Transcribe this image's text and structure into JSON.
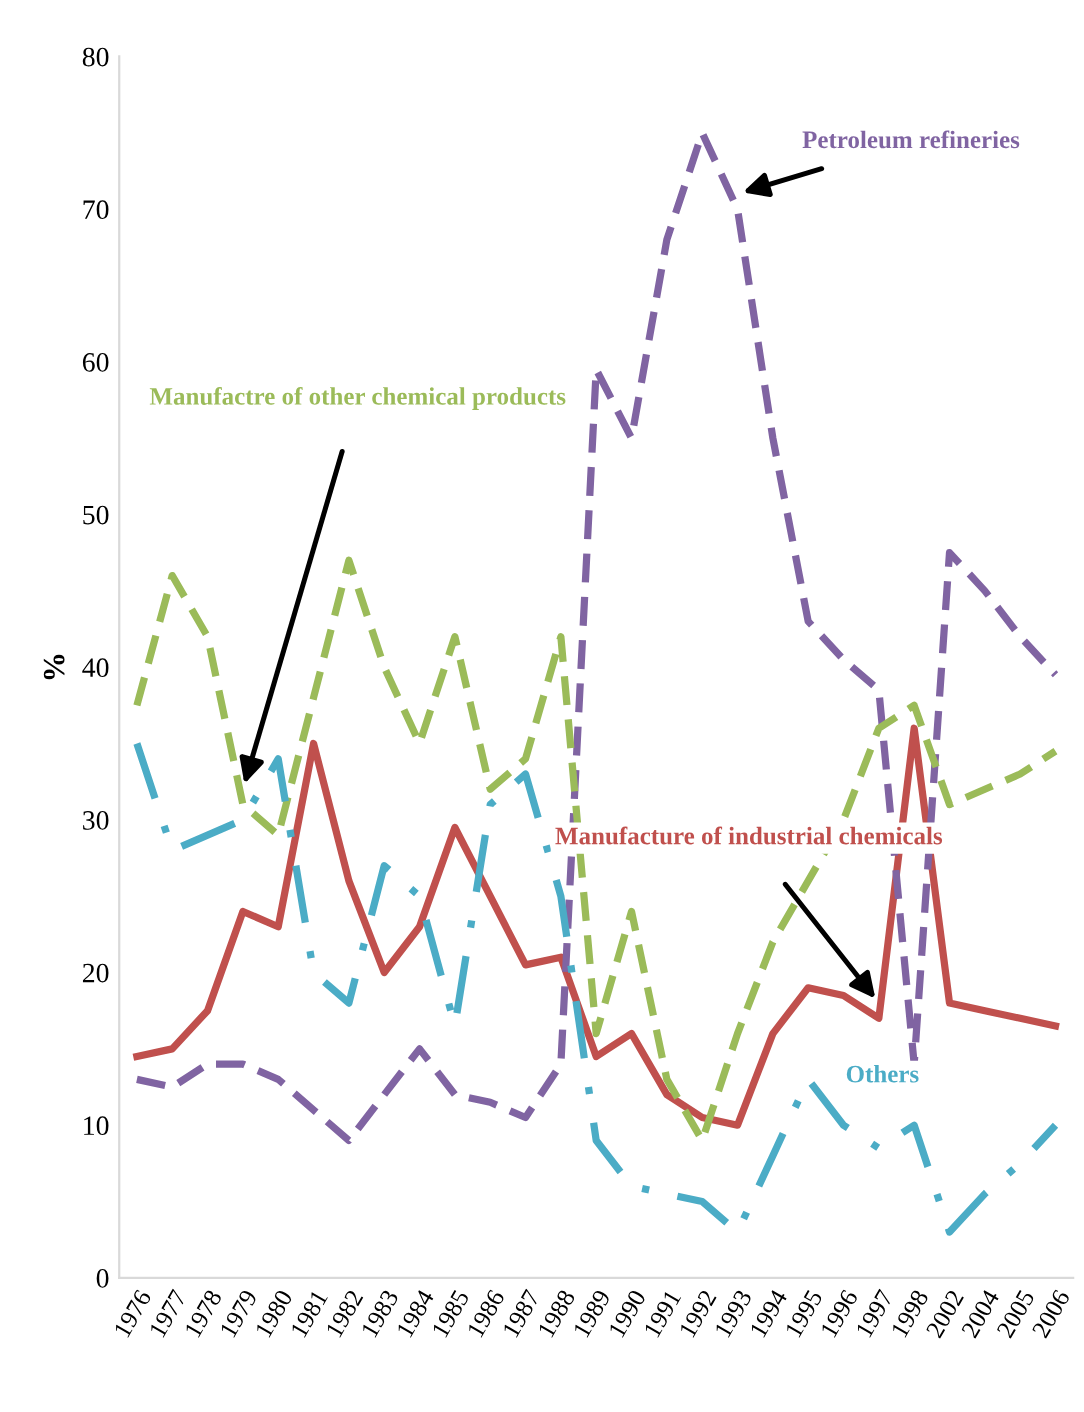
{
  "chart_data": {
    "type": "line",
    "ylabel": "%",
    "categories": [
      "1976",
      "1977",
      "1978",
      "1979",
      "1980",
      "1981",
      "1982",
      "1983",
      "1984",
      "1985",
      "1986",
      "1987",
      "1988",
      "1989",
      "1990",
      "1991",
      "1992",
      "1993",
      "1994",
      "1995",
      "1996",
      "1997",
      "1998",
      "2002",
      "2004",
      "2005",
      "2006"
    ],
    "ylim": [
      0,
      80
    ],
    "yticks": [
      0,
      10,
      20,
      30,
      40,
      50,
      60,
      70,
      80
    ],
    "grid": false,
    "legend": false,
    "series": [
      {
        "name": "Manufacture of industrial chemicals",
        "color": "#c0504d",
        "line_style": "solid",
        "values": [
          14.5,
          15,
          17.5,
          24,
          23,
          35,
          26,
          20,
          23,
          29.5,
          25,
          20.5,
          21,
          14.5,
          16,
          12,
          10.5,
          10,
          16,
          19,
          18.5,
          17,
          36,
          18,
          17.5,
          17,
          16.5
        ]
      },
      {
        "name": "Petroleum refineries",
        "color": "#8064a2",
        "line_style": "dashed",
        "values": [
          13,
          12.5,
          14,
          14,
          13,
          11,
          9,
          12,
          15,
          12,
          11.5,
          10.5,
          14,
          59.5,
          55,
          68,
          75,
          70,
          55,
          43,
          40.5,
          38.5,
          14,
          47.5,
          45,
          42,
          39.5
        ]
      },
      {
        "name": "Manufactre of other chemical products",
        "color": "#9bbb59",
        "line_style": "dashed",
        "values": [
          37.5,
          46,
          42,
          31,
          29,
          38,
          47,
          40,
          35,
          42,
          32,
          34,
          42,
          16,
          24,
          13,
          9,
          16,
          22,
          26,
          30,
          36,
          37.5,
          31,
          32,
          33,
          34.5
        ]
      },
      {
        "name": "Others",
        "color": "#4bacc6",
        "line_style": "dashdot",
        "values": [
          35,
          28,
          29,
          30,
          34,
          20,
          18,
          27,
          25,
          16.5,
          31,
          33,
          25,
          9,
          6,
          5.5,
          5,
          3,
          8,
          13,
          10,
          8.5,
          10,
          3,
          5.5,
          7.5,
          10
        ]
      }
    ]
  }
}
